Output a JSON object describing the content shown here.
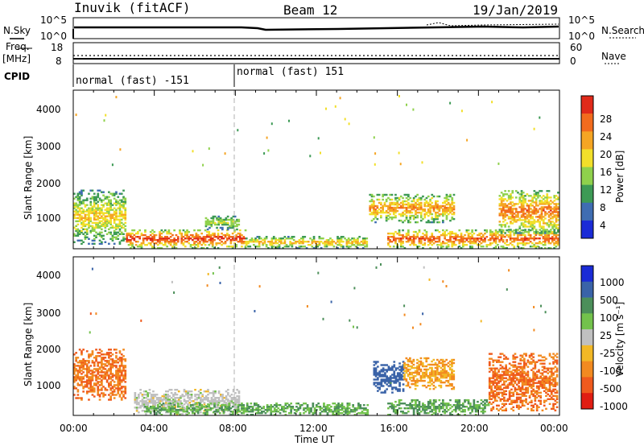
{
  "header": {
    "station": "Inuvik (fitACF)",
    "beam": "Beam 12",
    "date": "19/Jan/2019"
  },
  "top_panel": {
    "left_label": "N.Sky",
    "right_label": "N.Search",
    "tick_top": "10^5",
    "tick_bottom": "10^0"
  },
  "freq_panel": {
    "left_label_1": "Freq.",
    "left_label_2": "[MHz]",
    "right_label": "Nave",
    "left_ticks": [
      "18",
      "8"
    ],
    "right_ticks": [
      "60",
      "0"
    ]
  },
  "cpid_panel": {
    "label": "CPID",
    "modes": [
      "normal (fast) -151",
      "normal (fast) 151"
    ]
  },
  "colors": {
    "power": [
      "#1a2bd6",
      "#3f6db2",
      "#3d9a55",
      "#8fd14c",
      "#f2df2a",
      "#f5a523",
      "#f26b1d",
      "#e02a1a"
    ],
    "velocity": [
      "#1a2bd6",
      "#3a63a8",
      "#4c8f5a",
      "#73c24c",
      "#c0c0c0",
      "#f2b826",
      "#f28a20",
      "#ef5a1d",
      "#e01d12"
    ]
  },
  "chart_data": [
    {
      "type": "heatmap",
      "quantity": "Power",
      "ylabel": "Slant Range [km]",
      "yticks": [
        "1000",
        "2000",
        "3000",
        "4000"
      ],
      "ylim": [
        180,
        4600
      ],
      "xlim": [
        "00:00",
        "24:00"
      ],
      "colorbar": {
        "label": "Power [dB]",
        "ticks": [
          "4",
          "8",
          "12",
          "16",
          "20",
          "24",
          "28"
        ],
        "range": [
          0,
          32
        ]
      },
      "echo_regions": [
        {
          "t_start": 0.0,
          "t_end": 2.6,
          "range_low": 300,
          "range_high": 1800,
          "peak_power_db": 20
        },
        {
          "t_start": 2.6,
          "t_end": 8.5,
          "range_low": 180,
          "range_high": 700,
          "peak_power_db": 30
        },
        {
          "t_start": 6.5,
          "t_end": 8.2,
          "range_low": 700,
          "range_high": 1100,
          "peak_power_db": 16
        },
        {
          "t_start": 8.5,
          "t_end": 14.5,
          "range_low": 180,
          "range_high": 500,
          "peak_power_db": 22
        },
        {
          "t_start": 14.6,
          "t_end": 18.8,
          "range_low": 900,
          "range_high": 1700,
          "peak_power_db": 24
        },
        {
          "t_start": 15.5,
          "t_end": 23.9,
          "range_low": 180,
          "range_high": 700,
          "peak_power_db": 28
        },
        {
          "t_start": 21.0,
          "t_end": 23.9,
          "range_low": 600,
          "range_high": 1800,
          "peak_power_db": 26
        }
      ]
    },
    {
      "type": "heatmap",
      "quantity": "Velocity",
      "ylabel": "Slant Range [km]",
      "xlabel": "Time UT",
      "yticks": [
        "1000",
        "2000",
        "3000",
        "4000"
      ],
      "ylim": [
        180,
        4600
      ],
      "xticks": [
        "00:00",
        "04:00",
        "08:00",
        "12:00",
        "16:00",
        "20:00",
        "00:00"
      ],
      "colorbar": {
        "label": "Velocity [m s⁻¹]",
        "ticks": [
          "1000",
          "500",
          "100",
          "25",
          "-25",
          "-100",
          "-500",
          "-1000"
        ]
      },
      "echo_regions": [
        {
          "t_start": 0.0,
          "t_end": 2.6,
          "range_low": 600,
          "range_high": 2000,
          "velocity": -500
        },
        {
          "t_start": 3.0,
          "t_end": 8.2,
          "range_low": 200,
          "range_high": 900,
          "velocity": 0
        },
        {
          "t_start": 3.5,
          "t_end": 14.5,
          "range_low": 180,
          "range_high": 500,
          "velocity": 100
        },
        {
          "t_start": 14.8,
          "t_end": 16.3,
          "range_low": 800,
          "range_high": 1700,
          "velocity": 700
        },
        {
          "t_start": 16.3,
          "t_end": 18.8,
          "range_low": 900,
          "range_high": 1800,
          "velocity": -100
        },
        {
          "t_start": 15.5,
          "t_end": 20.5,
          "range_low": 180,
          "range_high": 600,
          "velocity": 100
        },
        {
          "t_start": 20.5,
          "t_end": 23.9,
          "range_low": 300,
          "range_high": 1900,
          "velocity": -500
        }
      ]
    }
  ]
}
